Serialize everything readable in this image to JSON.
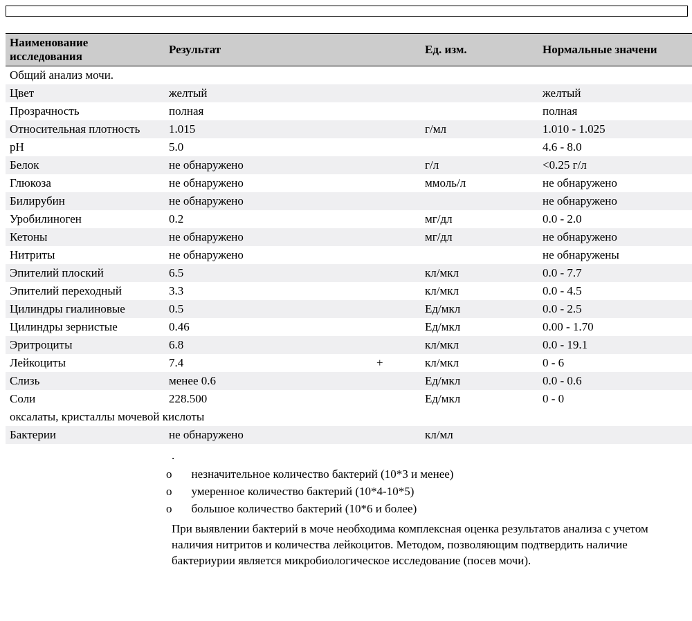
{
  "headers": {
    "name": "Наименование исследования",
    "result": "Результат",
    "unit": "Ед. изм.",
    "normal": "Нормальные значени"
  },
  "section_title": "Общий анализ мочи.",
  "rows": [
    {
      "name": "Цвет",
      "result": "желтый",
      "flag": "",
      "unit": "",
      "normal": "желтый",
      "stripe": "odd"
    },
    {
      "name": "Прозрачность",
      "result": "полная",
      "flag": "",
      "unit": "",
      "normal": "полная",
      "stripe": "even"
    },
    {
      "name": "Относительная плотность",
      "result": "1.015",
      "flag": "",
      "unit": "г/мл",
      "normal": "1.010 - 1.025",
      "stripe": "odd"
    },
    {
      "name": "pH",
      "result": "5.0",
      "flag": "",
      "unit": "",
      "normal": "4.6 - 8.0",
      "stripe": "even"
    },
    {
      "name": "Белок",
      "result": "не обнаружено",
      "flag": "",
      "unit": "г/л",
      "normal": "<0.25 г/л",
      "stripe": "odd"
    },
    {
      "name": "Глюкоза",
      "result": "не обнаружено",
      "flag": "",
      "unit": "ммоль/л",
      "normal": "не обнаружено",
      "stripe": "even"
    },
    {
      "name": "Билирубин",
      "result": "не обнаружено",
      "flag": "",
      "unit": "",
      "normal": "не обнаружено",
      "stripe": "odd"
    },
    {
      "name": "Уробилиноген",
      "result": "0.2",
      "flag": "",
      "unit": "мг/дл",
      "normal": "0.0 - 2.0",
      "stripe": "even"
    },
    {
      "name": "Кетоны",
      "result": "не обнаружено",
      "flag": "",
      "unit": "мг/дл",
      "normal": "не обнаружено",
      "stripe": "odd"
    },
    {
      "name": "Нитриты",
      "result": "не обнаружено",
      "flag": "",
      "unit": "",
      "normal": "не обнаружены",
      "stripe": "even"
    },
    {
      "name": "Эпителий плоский",
      "result": "6.5",
      "flag": "",
      "unit": "кл/мкл",
      "normal": "0.0 - 7.7",
      "stripe": "odd"
    },
    {
      "name": "Эпителий переходный",
      "result": "3.3",
      "flag": "",
      "unit": "кл/мкл",
      "normal": "0.0 - 4.5",
      "stripe": "even"
    },
    {
      "name": "Цилиндры гиалиновые",
      "result": "0.5",
      "flag": "",
      "unit": "Ед/мкл",
      "normal": "0.0 - 2.5",
      "stripe": "odd"
    },
    {
      "name": "Цилиндры зернистые",
      "result": "0.46",
      "flag": "",
      "unit": "Ед/мкл",
      "normal": "0.00 - 1.70",
      "stripe": "even"
    },
    {
      "name": "Эритроциты",
      "result": "6.8",
      "flag": "",
      "unit": "кл/мкл",
      "normal": "0.0 - 19.1",
      "stripe": "odd"
    },
    {
      "name": "Лейкоциты",
      "result": "7.4",
      "flag": "+",
      "unit": "кл/мкл",
      "normal": "0 - 6",
      "stripe": "even"
    },
    {
      "name": "Слизь",
      "result": "менее 0.6",
      "flag": "",
      "unit": "Ед/мкл",
      "normal": "0.0 - 0.6",
      "stripe": "odd"
    },
    {
      "name": "Соли",
      "result": "228.500",
      "flag": "",
      "unit": "Ед/мкл",
      "normal": "0 - 0",
      "stripe": "even"
    }
  ],
  "salt_note": "оксалаты, кристаллы мочевой кислоты",
  "bacteria_row": {
    "name": "Бактерии",
    "result": "не обнаружено",
    "flag": "",
    "unit": "кл/мл",
    "normal": "",
    "stripe": "odd"
  },
  "legend": {
    "dot": ".",
    "items": [
      "незначительное количество бактерий (10*3 и менее)",
      "умеренное количество бактерий (10*4-10*5)",
      "большое количество бактерий (10*6 и более)"
    ],
    "paragraph": "При выявлении бактерий в моче необходима комплексная оценка результатов анализа с учетом наличия нитритов и количества лейкоцитов.   Методом, позволяющим подтвердить наличие бактериурии является микробиологическое исследование (посев мочи)."
  },
  "bullet_char": "o"
}
